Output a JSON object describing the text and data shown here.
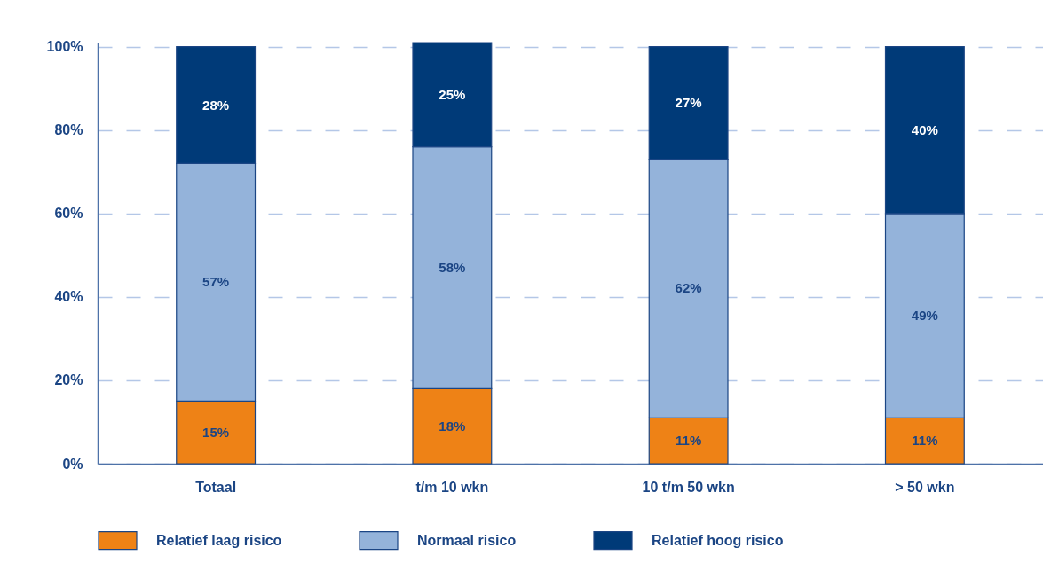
{
  "chart_data": {
    "type": "bar",
    "stacked": true,
    "categories": [
      "Totaal",
      "t/m 10 wkn",
      "10 t/m 50 wkn",
      "> 50 wkn"
    ],
    "series": [
      {
        "name": "Relatief laag risico",
        "color": "#ee8216",
        "values": [
          15,
          18,
          11,
          11
        ],
        "value_labels": [
          "15%",
          "18%",
          "11%",
          "11%"
        ]
      },
      {
        "name": "Normaal risico",
        "color": "#94b3da",
        "values": [
          57,
          58,
          62,
          49
        ],
        "value_labels": [
          "57%",
          "58%",
          "62%",
          "49%"
        ]
      },
      {
        "name": "Relatief hoog risico",
        "color": "#003a78",
        "values": [
          28,
          25,
          27,
          40
        ],
        "value_labels": [
          "28%",
          "25%",
          "27%",
          "40%"
        ]
      }
    ],
    "ylim": [
      0,
      101
    ],
    "yticks": [
      {
        "value": 0,
        "label": "0%"
      },
      {
        "value": 20,
        "label": "20%"
      },
      {
        "value": 40,
        "label": "40%"
      },
      {
        "value": 60,
        "label": "60%"
      },
      {
        "value": 80,
        "label": "80%"
      },
      {
        "value": 100,
        "label": "100%"
      }
    ],
    "grid": "y",
    "legend": "bottom"
  }
}
